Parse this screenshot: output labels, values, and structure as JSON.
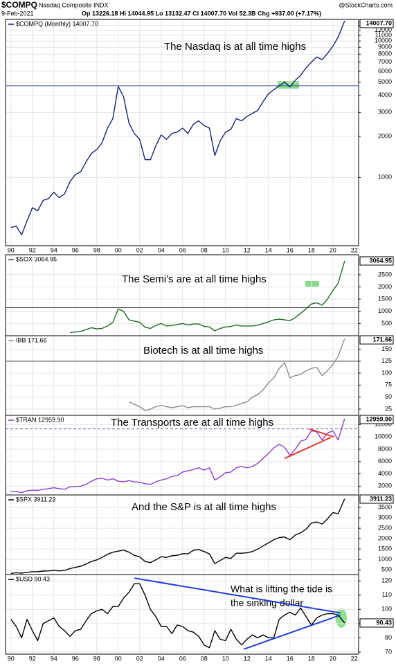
{
  "header": {
    "symbol": "$COMPQ",
    "name": "Nasdaq Composite INDX",
    "date": "9-Feb-2021",
    "quote": "Op 13226.18 Hi 14044.95 Lo 13132.47 Cl 14007.70 Vol 52.3B Chg +937.00 (+7.17%)",
    "source": "@StockCharts.com"
  },
  "chart_data": [
    {
      "type": "line",
      "log": true,
      "annotation": "The Nasdaq is at all time highs",
      "last_label": "14007.70",
      "xlim": [
        1989.5,
        2022.4
      ],
      "ylim": [
        316,
        14400
      ],
      "yticks": [
        1000,
        2000,
        3000,
        4000,
        5000,
        6000,
        7000,
        8000,
        9000,
        10000,
        11000,
        12000,
        13000
      ],
      "grid": true,
      "hline": 4700,
      "hline_color": "#3f51b5",
      "xticks": [
        {
          "value": 1990,
          "label": "90"
        },
        {
          "value": 1992,
          "label": "92"
        },
        {
          "value": 1994,
          "label": "94"
        },
        {
          "value": 1996,
          "label": "96"
        },
        {
          "value": 1998,
          "label": "98"
        },
        {
          "value": 2000,
          "label": "00"
        },
        {
          "value": 2002,
          "label": "02"
        },
        {
          "value": 2004,
          "label": "04"
        },
        {
          "value": 2006,
          "label": "06"
        },
        {
          "value": 2008,
          "label": "08"
        },
        {
          "value": 2010,
          "label": "10"
        },
        {
          "value": 2012,
          "label": "12"
        },
        {
          "value": 2014,
          "label": "14"
        },
        {
          "value": 2016,
          "label": "16"
        },
        {
          "value": 2018,
          "label": "18"
        },
        {
          "value": 2020,
          "label": "20"
        },
        {
          "value": 2022,
          "label": "22"
        }
      ],
      "x": [
        1990,
        1990.5,
        1991,
        1991.5,
        1992,
        1992.5,
        1993,
        1993.5,
        1994,
        1994.5,
        1995,
        1995.5,
        1996,
        1996.5,
        1997,
        1997.5,
        1998,
        1998.5,
        1999,
        1999.5,
        2000,
        2000.5,
        2001,
        2001.5,
        2002,
        2002.5,
        2003,
        2003.5,
        2004,
        2004.5,
        2005,
        2005.5,
        2006,
        2006.5,
        2007,
        2007.5,
        2008,
        2008.5,
        2009,
        2009.5,
        2010,
        2010.5,
        2011,
        2011.5,
        2012,
        2012.5,
        2013,
        2013.5,
        2014,
        2014.5,
        2015,
        2015.5,
        2016,
        2016.5,
        2017,
        2017.5,
        2018,
        2018.5,
        2019,
        2019.5,
        2020,
        2020.5,
        2021.1
      ],
      "series": [
        {
          "name": "$COMPQ (Monthly) 14007.70",
          "color": "#14237a",
          "values": [
            430,
            440,
            380,
            480,
            600,
            570,
            680,
            700,
            780,
            710,
            760,
            930,
            1050,
            1100,
            1300,
            1500,
            1600,
            1800,
            2300,
            2700,
            4650,
            3900,
            2500,
            2100,
            1900,
            1350,
            1350,
            1700,
            2050,
            1900,
            2100,
            2150,
            2300,
            2100,
            2450,
            2600,
            2400,
            2300,
            1450,
            1850,
            2150,
            2250,
            2700,
            2600,
            2800,
            2950,
            3100,
            3600,
            4100,
            4400,
            4700,
            5000,
            4600,
            5150,
            5600,
            6350,
            7000,
            7650,
            7300,
            8100,
            9150,
            10700,
            14007.7
          ]
        }
      ]
    },
    {
      "type": "line",
      "annotation": "The Semi's are at all time highs",
      "last_label": "3064.95",
      "xlim": [
        1989.5,
        2022.4
      ],
      "ylim": [
        0,
        3320
      ],
      "yticks": [
        500,
        1000,
        1500,
        2000,
        2500
      ],
      "grid": true,
      "hline": 1150,
      "hline_color": "#333333",
      "x": [
        1990,
        1990.5,
        1991,
        1991.5,
        1992,
        1992.5,
        1993,
        1993.5,
        1994,
        1994.5,
        1995,
        1995.5,
        1996,
        1996.5,
        1997,
        1997.5,
        1998,
        1998.5,
        1999,
        1999.5,
        2000,
        2000.5,
        2001,
        2001.5,
        2002,
        2002.5,
        2003,
        2003.5,
        2004,
        2004.5,
        2005,
        2005.5,
        2006,
        2006.5,
        2007,
        2007.5,
        2008,
        2008.5,
        2009,
        2009.5,
        2010,
        2010.5,
        2011,
        2011.5,
        2012,
        2012.5,
        2013,
        2013.5,
        2014,
        2014.5,
        2015,
        2015.5,
        2016,
        2016.5,
        2017,
        2017.5,
        2018,
        2018.5,
        2019,
        2019.5,
        2020,
        2020.5,
        2021.1
      ],
      "series": [
        {
          "name": "$SOX 3064.95",
          "color": "#1e6b1e",
          "values": [
            null,
            null,
            null,
            null,
            null,
            null,
            null,
            null,
            null,
            null,
            null,
            130,
            150,
            180,
            250,
            330,
            280,
            300,
            400,
            550,
            1100,
            1000,
            650,
            600,
            550,
            350,
            300,
            420,
            500,
            400,
            420,
            460,
            500,
            440,
            480,
            480,
            380,
            360,
            200,
            300,
            360,
            380,
            440,
            400,
            400,
            400,
            430,
            500,
            570,
            650,
            680,
            650,
            620,
            740,
            920,
            1100,
            1300,
            1350,
            1250,
            1500,
            1850,
            2150,
            3064.95
          ]
        }
      ]
    },
    {
      "type": "line",
      "annotation": "Biotech is at all time highs",
      "last_label": "171.66",
      "xlim": [
        1989.5,
        2022.4
      ],
      "ylim": [
        12,
        178
      ],
      "yticks": [
        25,
        50,
        75,
        100,
        125,
        150
      ],
      "grid": true,
      "hline": 125,
      "hline_color": "#333333",
      "x": [
        1990,
        1990.5,
        1991,
        1991.5,
        1992,
        1992.5,
        1993,
        1993.5,
        1994,
        1994.5,
        1995,
        1995.5,
        1996,
        1996.5,
        1997,
        1997.5,
        1998,
        1998.5,
        1999,
        1999.5,
        2000,
        2000.5,
        2001,
        2001.5,
        2002,
        2002.5,
        2003,
        2003.5,
        2004,
        2004.5,
        2005,
        2005.5,
        2006,
        2006.5,
        2007,
        2007.5,
        2008,
        2008.5,
        2009,
        2009.5,
        2010,
        2010.5,
        2011,
        2011.5,
        2012,
        2012.5,
        2013,
        2013.5,
        2014,
        2014.5,
        2015,
        2015.5,
        2016,
        2016.5,
        2017,
        2017.5,
        2018,
        2018.5,
        2019,
        2019.5,
        2020,
        2020.5,
        2021.1
      ],
      "series": [
        {
          "name": "IBB 171.66",
          "color": "#8a8a8a",
          "values": [
            null,
            null,
            null,
            null,
            null,
            null,
            null,
            null,
            null,
            null,
            null,
            null,
            null,
            null,
            null,
            null,
            null,
            null,
            null,
            null,
            null,
            null,
            40,
            35,
            30,
            22,
            25,
            30,
            33,
            30,
            28,
            30,
            32,
            28,
            30,
            30,
            30,
            30,
            25,
            27,
            30,
            30,
            33,
            37,
            40,
            50,
            55,
            65,
            80,
            90,
            110,
            122,
            90,
            95,
            97,
            105,
            110,
            112,
            95,
            105,
            118,
            135,
            171.66
          ]
        }
      ]
    },
    {
      "type": "line",
      "annotation": "The Transports are at all time highs",
      "last_label": "12959.90",
      "xlim": [
        1989.5,
        2022.4
      ],
      "ylim": [
        580,
        13500
      ],
      "yticks": [
        2000,
        4000,
        6000,
        8000,
        10000,
        12000
      ],
      "grid": true,
      "hline": 11300,
      "hline_color": "#3f51b5",
      "hline_dashed": true,
      "trendlines": [
        {
          "x": [
            2015.5,
            2019.8
          ],
          "y": [
            6500,
            9900
          ],
          "color": "#e53935"
        },
        {
          "x": [
            2017.8,
            2020.1
          ],
          "y": [
            11300,
            10000
          ],
          "color": "#e53935"
        }
      ],
      "x": [
        1990,
        1990.5,
        1991,
        1991.5,
        1992,
        1992.5,
        1993,
        1993.5,
        1994,
        1994.5,
        1995,
        1995.5,
        1996,
        1996.5,
        1997,
        1997.5,
        1998,
        1998.5,
        1999,
        1999.5,
        2000,
        2000.5,
        2001,
        2001.5,
        2002,
        2002.5,
        2003,
        2003.5,
        2004,
        2004.5,
        2005,
        2005.5,
        2006,
        2006.5,
        2007,
        2007.5,
        2008,
        2008.5,
        2009,
        2009.5,
        2010,
        2010.5,
        2011,
        2011.5,
        2012,
        2012.5,
        2013,
        2013.5,
        2014,
        2014.5,
        2015,
        2015.5,
        2016,
        2016.5,
        2017,
        2017.5,
        2018,
        2018.5,
        2019,
        2019.5,
        2020,
        2020.5,
        2021.1
      ],
      "series": [
        {
          "name": "$TRAN 12959.90",
          "color": "#8a3fd1",
          "values": [
            1100,
            1150,
            950,
            1250,
            1350,
            1300,
            1500,
            1600,
            1750,
            1600,
            1500,
            1900,
            1950,
            2000,
            2300,
            2800,
            3200,
            3300,
            3000,
            3200,
            2800,
            2700,
            2900,
            2700,
            2650,
            2400,
            2300,
            2700,
            3000,
            3200,
            3600,
            3700,
            4300,
            4500,
            4700,
            5000,
            4600,
            5000,
            3000,
            3500,
            4200,
            4300,
            5000,
            5200,
            5000,
            5200,
            5700,
            6500,
            7300,
            8200,
            8800,
            8300,
            7000,
            8000,
            9300,
            9600,
            11000,
            10800,
            9500,
            10600,
            11000,
            9500,
            12959.9
          ]
        }
      ]
    },
    {
      "type": "line",
      "annotation": "And the S&P is at all time highs",
      "last_label": "3911.23",
      "xlim": [
        1989.5,
        2022.4
      ],
      "ylim": [
        275,
        4100
      ],
      "yticks": [
        500,
        1000,
        1500,
        2000,
        2500,
        3000,
        3500
      ],
      "grid": true,
      "x": [
        1990,
        1990.5,
        1991,
        1991.5,
        1992,
        1992.5,
        1993,
        1993.5,
        1994,
        1994.5,
        1995,
        1995.5,
        1996,
        1996.5,
        1997,
        1997.5,
        1998,
        1998.5,
        1999,
        1999.5,
        2000,
        2000.5,
        2001,
        2001.5,
        2002,
        2002.5,
        2003,
        2003.5,
        2004,
        2004.5,
        2005,
        2005.5,
        2006,
        2006.5,
        2007,
        2007.5,
        2008,
        2008.5,
        2009,
        2009.5,
        2010,
        2010.5,
        2011,
        2011.5,
        2012,
        2012.5,
        2013,
        2013.5,
        2014,
        2014.5,
        2015,
        2015.5,
        2016,
        2016.5,
        2017,
        2017.5,
        2018,
        2018.5,
        2019,
        2019.5,
        2020,
        2020.5,
        2021.1
      ],
      "series": [
        {
          "name": "$SPX 3911.23",
          "color": "#000000",
          "values": [
            330,
            360,
            340,
            380,
            410,
            410,
            440,
            450,
            470,
            450,
            470,
            560,
            620,
            670,
            780,
            900,
            980,
            1100,
            1250,
            1350,
            1400,
            1450,
            1350,
            1200,
            1130,
            900,
            850,
            980,
            1130,
            1100,
            1180,
            1200,
            1280,
            1270,
            1440,
            1480,
            1380,
            1270,
            800,
            950,
            1100,
            1050,
            1300,
            1300,
            1320,
            1380,
            1500,
            1650,
            1800,
            1950,
            2050,
            2080,
            1950,
            2170,
            2280,
            2450,
            2750,
            2800,
            2700,
            2950,
            3250,
            3200,
            3911.23
          ]
        }
      ]
    },
    {
      "type": "line",
      "annotation": [
        "What is lifting the tide is",
        "the sinking dollar"
      ],
      "annotation_color": "#1f3fe0",
      "last_label": "90.43",
      "xlim": [
        1989.5,
        2022.4
      ],
      "ylim": [
        68.5,
        124.5
      ],
      "yticks": [
        70,
        80,
        90,
        100,
        110,
        120
      ],
      "grid": true,
      "trendlines": [
        {
          "x": [
            2001.5,
            2020.7
          ],
          "y": [
            122,
            97.5
          ],
          "color": "#1f3fe0"
        },
        {
          "x": [
            2011.7,
            2020.7
          ],
          "y": [
            72,
            96
          ],
          "color": "#1f3fe0"
        }
      ],
      "xticks": [
        {
          "value": 1990,
          "label": "90"
        },
        {
          "value": 1992,
          "label": "92"
        },
        {
          "value": 1994,
          "label": "94"
        },
        {
          "value": 1996,
          "label": "96"
        },
        {
          "value": 1998,
          "label": "98"
        },
        {
          "value": 2000,
          "label": "00"
        },
        {
          "value": 2002,
          "label": "02"
        },
        {
          "value": 2004,
          "label": "04"
        },
        {
          "value": 2006,
          "label": "06"
        },
        {
          "value": 2008,
          "label": "08"
        },
        {
          "value": 2010,
          "label": "10"
        },
        {
          "value": 2012,
          "label": "12"
        },
        {
          "value": 2014,
          "label": "14"
        },
        {
          "value": 2016,
          "label": "16"
        },
        {
          "value": 2018,
          "label": "18"
        },
        {
          "value": 2020,
          "label": "20"
        },
        {
          "value": 2022,
          "label": "22"
        }
      ],
      "x": [
        1990,
        1990.5,
        1991,
        1991.5,
        1992,
        1992.5,
        1993,
        1993.5,
        1994,
        1994.5,
        1995,
        1995.5,
        1996,
        1996.5,
        1997,
        1997.5,
        1998,
        1998.5,
        1999,
        1999.5,
        2000,
        2000.5,
        2001,
        2001.5,
        2002,
        2002.5,
        2003,
        2003.5,
        2004,
        2004.5,
        2005,
        2005.5,
        2006,
        2006.5,
        2007,
        2007.5,
        2008,
        2008.5,
        2009,
        2009.5,
        2010,
        2010.5,
        2011,
        2011.5,
        2012,
        2012.5,
        2013,
        2013.5,
        2014,
        2014.5,
        2015,
        2015.5,
        2016,
        2016.5,
        2017,
        2017.5,
        2018,
        2018.5,
        2019,
        2019.5,
        2020,
        2020.5,
        2021.1
      ],
      "series": [
        {
          "name": "$USD 90.43",
          "color": "#000000",
          "values": [
            93,
            88,
            80,
            93,
            85,
            78,
            90,
            92,
            94,
            88,
            85,
            81,
            85,
            86,
            92,
            97,
            99,
            100,
            97,
            102,
            102,
            108,
            112,
            118,
            118,
            110,
            100,
            95,
            88,
            88,
            83,
            89,
            88,
            85,
            84,
            81,
            75,
            73,
            85,
            79,
            78,
            86,
            79,
            75,
            79,
            82,
            80,
            82,
            80,
            80,
            93,
            96,
            98,
            96,
            101,
            95,
            89,
            94,
            96,
            97,
            97,
            96,
            90.43
          ]
        }
      ]
    }
  ]
}
